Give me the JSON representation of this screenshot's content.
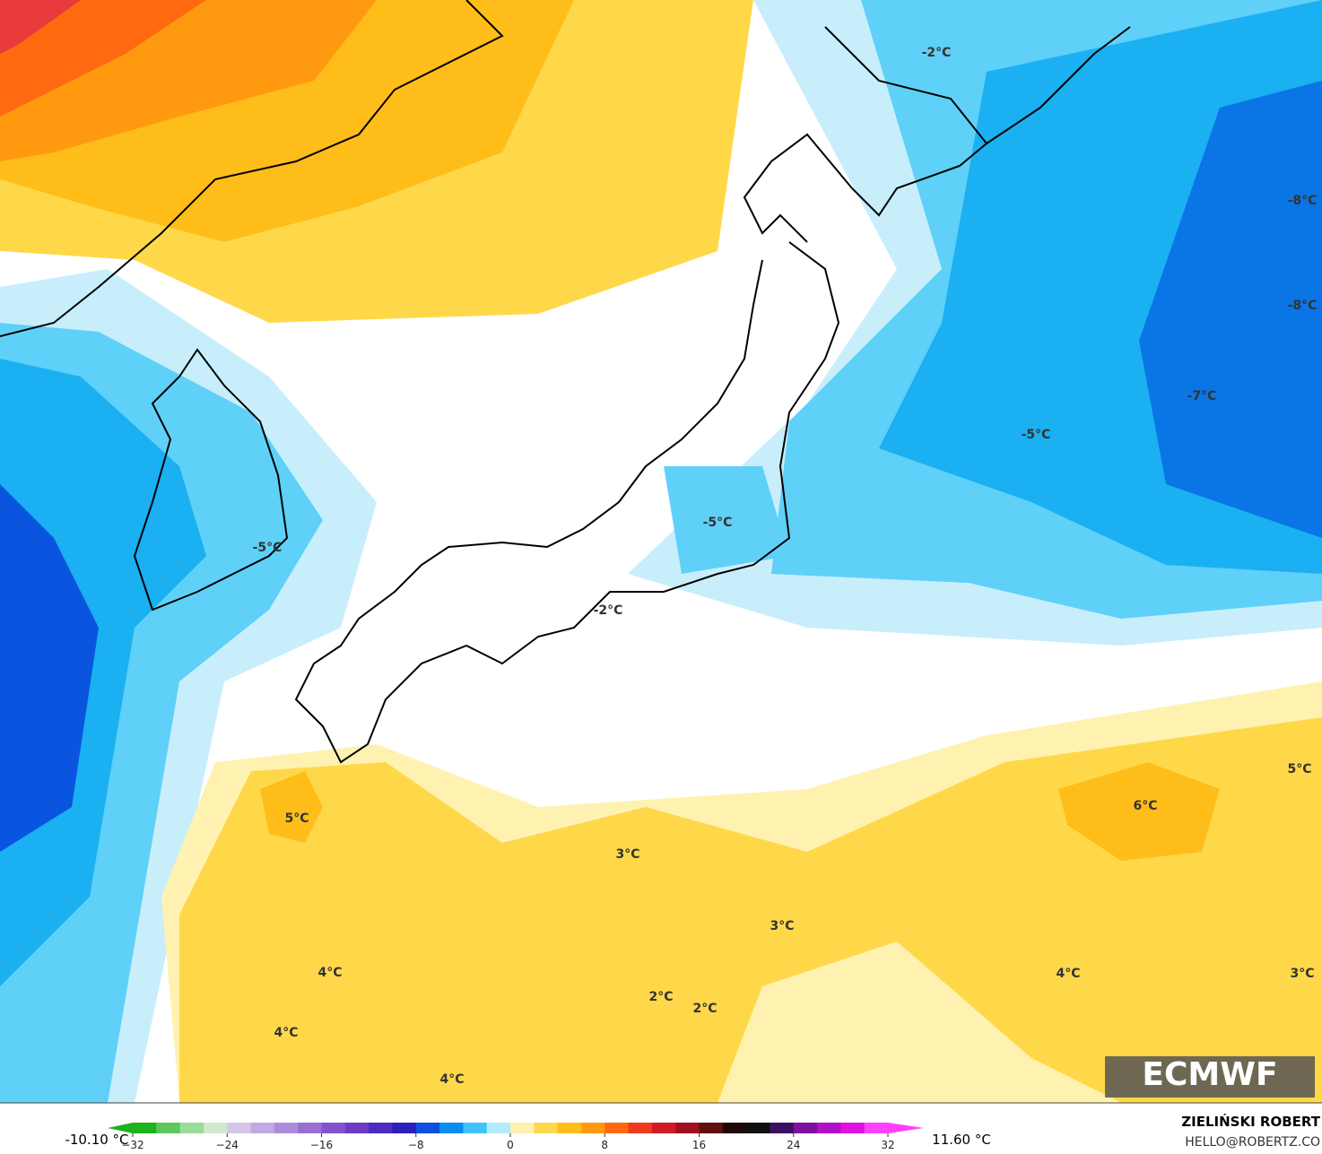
{
  "map_labels": [
    "-2°C",
    "-8°C",
    "-8°C",
    "-7°C",
    "-5°C",
    "-5°C",
    "-5°C",
    "-2°C",
    "5°C",
    "6°C",
    "5°C",
    "3°C",
    "3°C",
    "4°C",
    "4°C",
    "3°C",
    "2°C",
    "2°C",
    "4°C",
    "4°C"
  ],
  "brand": "ECMWF",
  "author": "ZIELIŃSKI ROBERT",
  "contact": "HELLO@ROBERTZ.CO",
  "colorbar": {
    "min_label": "-10.10 °C",
    "max_label": "11.60 °C",
    "range": [
      -32,
      32
    ],
    "ticks": [
      {
        "value": -32,
        "label": "−32"
      },
      {
        "value": -24,
        "label": "−24"
      },
      {
        "value": -16,
        "label": "−16"
      },
      {
        "value": -8,
        "label": "−8"
      },
      0,
      8,
      16,
      24,
      32
    ],
    "colors": [
      "#1db31d",
      "#5ec85e",
      "#9adb9a",
      "#cfe9cf",
      "#d6c6ea",
      "#c3a9e3",
      "#ad8bdb",
      "#9a6fd4",
      "#8452cc",
      "#6b3bc6",
      "#4b2bc0",
      "#2a1fbb",
      "#0f4fe0",
      "#0a8cf0",
      "#3fc4f8",
      "#b4ebfc",
      "#fff2b0",
      "#ffd84a",
      "#ffbd1a",
      "#ff9a10",
      "#ff6a10",
      "#f03a20",
      "#d01a25",
      "#a0101c",
      "#601010",
      "#200808",
      "#101010",
      "#3a1060",
      "#8010a0",
      "#b010c8",
      "#e010e0",
      "#ff40ff"
    ]
  }
}
